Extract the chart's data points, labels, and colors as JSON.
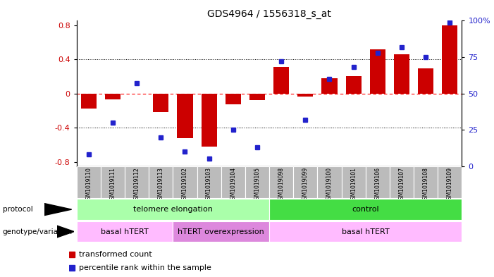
{
  "title": "GDS4964 / 1556318_s_at",
  "samples": [
    "GSM1019110",
    "GSM1019111",
    "GSM1019112",
    "GSM1019113",
    "GSM1019102",
    "GSM1019103",
    "GSM1019104",
    "GSM1019105",
    "GSM1019098",
    "GSM1019099",
    "GSM1019100",
    "GSM1019101",
    "GSM1019106",
    "GSM1019107",
    "GSM1019108",
    "GSM1019109"
  ],
  "transformed_count": [
    -0.18,
    -0.07,
    0.0,
    -0.22,
    -0.52,
    -0.62,
    -0.13,
    -0.08,
    0.31,
    -0.04,
    0.18,
    0.2,
    0.52,
    0.46,
    0.29,
    0.8
  ],
  "percentile_rank": [
    8,
    30,
    57,
    20,
    10,
    5,
    25,
    13,
    72,
    32,
    60,
    68,
    78,
    82,
    75,
    99
  ],
  "ylim_left": [
    -0.85,
    0.85
  ],
  "ylim_right": [
    0,
    100
  ],
  "yticks_left": [
    -0.8,
    -0.4,
    0.0,
    0.4,
    0.8
  ],
  "yticks_right": [
    0,
    25,
    50,
    75,
    100
  ],
  "bar_color": "#cc0000",
  "dot_color": "#2222cc",
  "protocol_labels": [
    {
      "label": "telomere elongation",
      "start": 0,
      "end": 7,
      "color": "#aaffaa"
    },
    {
      "label": "control",
      "start": 8,
      "end": 15,
      "color": "#44dd44"
    }
  ],
  "genotype_labels": [
    {
      "label": "basal hTERT",
      "start": 0,
      "end": 3,
      "color": "#ffbbff"
    },
    {
      "label": "hTERT overexpression",
      "start": 4,
      "end": 7,
      "color": "#dd88dd"
    },
    {
      "label": "basal hTERT",
      "start": 8,
      "end": 15,
      "color": "#ffbbff"
    }
  ],
  "legend_bar_label": "transformed count",
  "legend_dot_label": "percentile rank within the sample",
  "bar_color_legend": "#cc0000",
  "dot_color_legend": "#2222cc",
  "tick_label_bg": "#bbbbbb",
  "left_tick_color": "#cc0000",
  "right_tick_color": "#2222cc"
}
